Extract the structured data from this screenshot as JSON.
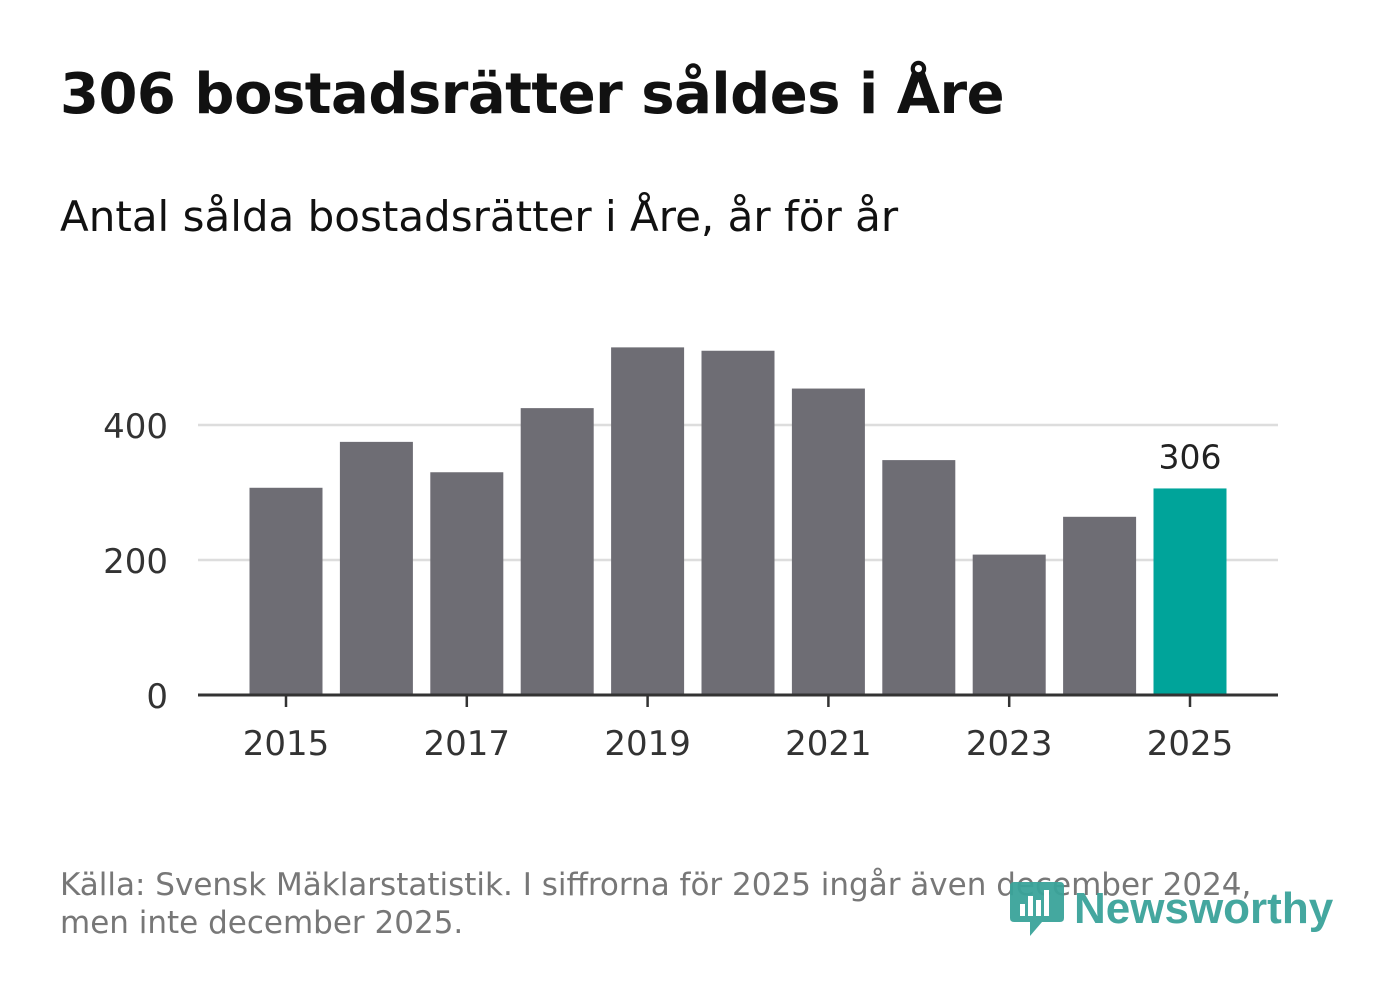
{
  "chart_data": {
    "type": "bar",
    "title": "306 bostadsrätter såldes i Åre",
    "subtitle": "Antal sålda bostadsrätter i Åre, år för år",
    "categories": [
      "2015",
      "2016",
      "2017",
      "2018",
      "2019",
      "2020",
      "2021",
      "2022",
      "2023",
      "2024",
      "2025"
    ],
    "values": [
      307,
      375,
      330,
      425,
      515,
      510,
      454,
      348,
      208,
      264,
      306
    ],
    "x_tick_labels": [
      "2015",
      "2017",
      "2019",
      "2021",
      "2023",
      "2025"
    ],
    "y_ticks": [
      0,
      200,
      400
    ],
    "ylim": [
      0,
      530
    ],
    "grid": true,
    "highlight": {
      "index": 10,
      "label": "306"
    },
    "xlabel": "",
    "ylabel": ""
  },
  "colors": {
    "bar": "#6e6d74",
    "highlight": "#00a49a",
    "grid": "#dddddd",
    "axis": "#333333",
    "tick_text": "#333333",
    "brand": "#3aa39a"
  },
  "footer": {
    "source": "Källa: Svensk Mäklarstatistik. I siffrorna för 2025 ingår även december 2024, men inte december 2025."
  },
  "logo": {
    "text": "Newsworthy",
    "icon": "newsworthy-logo-icon"
  }
}
